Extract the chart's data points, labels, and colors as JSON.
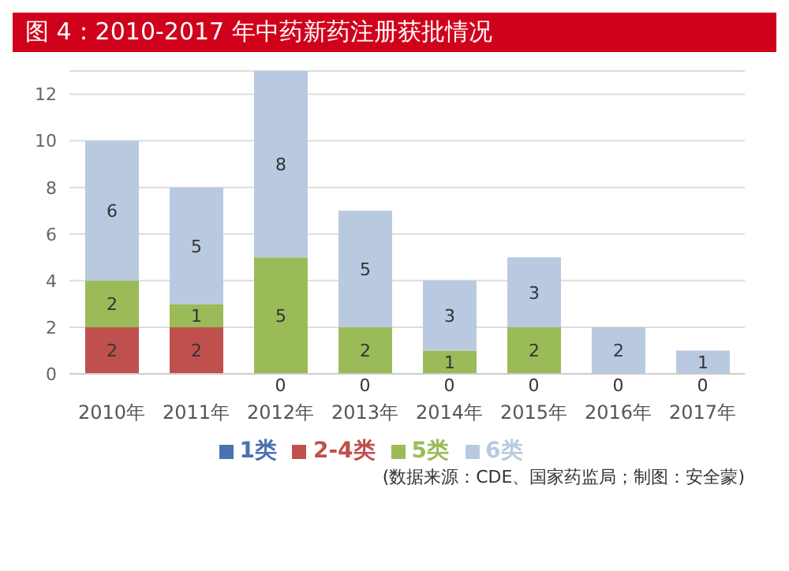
{
  "chart_data": {
    "type": "bar",
    "title": "图 4：2010-2017 年中药新药注册获批情况",
    "categories": [
      "2010年",
      "2011年",
      "2012年",
      "2013年",
      "2014年",
      "2015年",
      "2016年",
      "2017年"
    ],
    "stacked": true,
    "series": [
      {
        "name": "1类",
        "color": "#4a72b0",
        "values": [
          0,
          0,
          0,
          0,
          0,
          0,
          0,
          0
        ],
        "value_labels": [
          null,
          null,
          "0",
          "0",
          "0",
          "0",
          "0",
          "0"
        ]
      },
      {
        "name": "2-4类",
        "color": "#c0504d",
        "values": [
          2,
          2,
          0,
          0,
          0,
          0,
          0,
          0
        ],
        "value_labels": [
          "2",
          "2",
          null,
          null,
          null,
          null,
          null,
          null
        ]
      },
      {
        "name": "5类",
        "color": "#9bbb59",
        "values": [
          2,
          1,
          5,
          2,
          1,
          2,
          0,
          0
        ],
        "value_labels": [
          "2",
          "1",
          "5",
          "2",
          "1",
          "2",
          null,
          null
        ]
      },
      {
        "name": "6类",
        "color": "#b9c9e0",
        "values": [
          6,
          5,
          8,
          5,
          3,
          3,
          2,
          1
        ],
        "value_labels": [
          "6",
          "5",
          "8",
          "5",
          "3",
          "3",
          "2",
          "1"
        ]
      }
    ],
    "ylim": [
      0,
      13
    ],
    "yticks": [
      0,
      2,
      4,
      6,
      8,
      10,
      12
    ],
    "grid": "y",
    "legend": "bottom",
    "annotations": [
      "(数据来源：CDE、国家药监局；制图：安全蒙)"
    ]
  }
}
